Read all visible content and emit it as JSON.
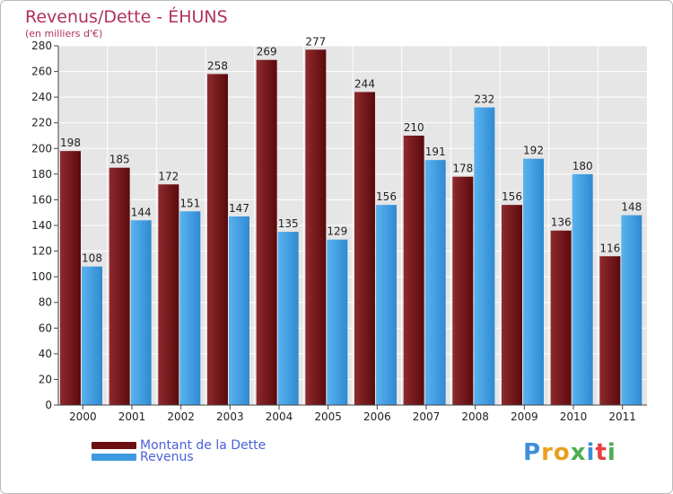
{
  "header": {
    "title": "Revenus/Dette - ÉHUNS",
    "subtitle": "(en milliers d'€)"
  },
  "chart_data": {
    "type": "bar",
    "title": "Revenus/Dette - ÉHUNS",
    "ylabel": "(en milliers d'€)",
    "xlabel": "",
    "ylim": [
      0,
      280
    ],
    "ytick_step": 20,
    "grid": true,
    "categories": [
      "2000",
      "2001",
      "2002",
      "2003",
      "2004",
      "2005",
      "2006",
      "2007",
      "2008",
      "2009",
      "2010",
      "2011"
    ],
    "series": [
      {
        "name": "Montant de la Dette",
        "color": "#7a1a1d",
        "values": [
          198,
          185,
          172,
          258,
          269,
          277,
          244,
          210,
          178,
          156,
          136,
          116
        ]
      },
      {
        "name": "Revenus",
        "color": "#4ea6e6",
        "values": [
          108,
          144,
          151,
          147,
          135,
          129,
          156,
          191,
          232,
          192,
          180,
          148
        ]
      }
    ],
    "legend_position": "bottom-left"
  },
  "legend": {
    "items": [
      {
        "label": "Montant de la Dette",
        "color": "#6b0f12"
      },
      {
        "label": "Revenus",
        "color": "#3d9ae0"
      }
    ]
  },
  "logo": {
    "letters": [
      "P",
      "r",
      "o",
      "x",
      "i",
      "t",
      "i"
    ],
    "colors": [
      "#3d8fd8",
      "#e8a020",
      "#e8a020",
      "#4caf50",
      "#3d8fd8",
      "#e84040",
      "#4caf50"
    ]
  }
}
